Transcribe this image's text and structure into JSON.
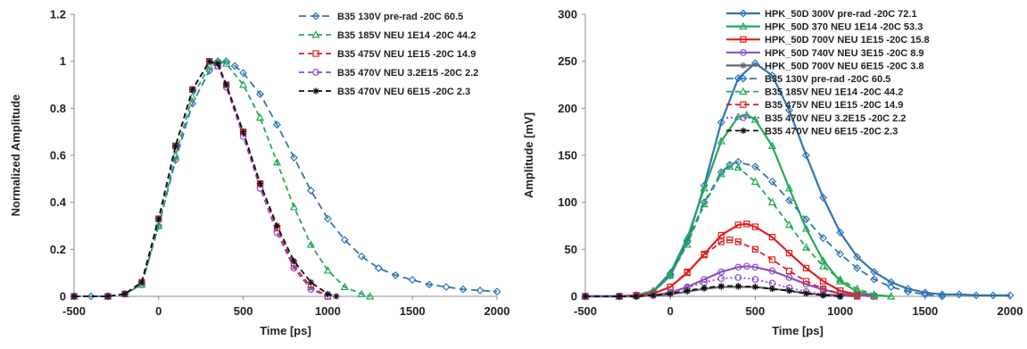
{
  "chart_data": [
    {
      "type": "line",
      "xlabel": "Time [ps]",
      "ylabel": "Normalized Amplitude",
      "xlim": [
        -500,
        2000
      ],
      "ylim": [
        0,
        1.2
      ],
      "xticks": [
        "-500",
        "0",
        "500",
        "1000",
        "1500",
        "2000"
      ],
      "yticks": [
        "0",
        "0.2",
        "0.4",
        "0.6",
        "0.8",
        "1",
        "1.2"
      ],
      "grid": false,
      "legend_position": "top-right",
      "series": [
        {
          "name": "B35 130V pre-rad -20C 60.5",
          "color": "#2e75b6",
          "dash": "8,5",
          "marker": "diamond",
          "x": [
            -500,
            -400,
            -300,
            -200,
            -100,
            0,
            100,
            200,
            300,
            350,
            400,
            450,
            500,
            600,
            700,
            800,
            900,
            1000,
            1100,
            1200,
            1300,
            1400,
            1500,
            1600,
            1700,
            1800,
            1900,
            2000
          ],
          "y": [
            0,
            0,
            0,
            0.01,
            0.05,
            0.3,
            0.58,
            0.82,
            0.96,
            1.0,
            1.0,
            0.98,
            0.95,
            0.86,
            0.73,
            0.59,
            0.45,
            0.33,
            0.24,
            0.17,
            0.12,
            0.09,
            0.07,
            0.05,
            0.04,
            0.03,
            0.025,
            0.02
          ]
        },
        {
          "name": "B35 185V NEU 1E14 -20C 44.2",
          "color": "#22aa55",
          "dash": "6,4",
          "marker": "triangle",
          "x": [
            -500,
            -300,
            -200,
            -100,
            0,
            100,
            200,
            300,
            350,
            400,
            500,
            600,
            700,
            800,
            900,
            1000,
            1100,
            1200,
            1250
          ],
          "y": [
            0,
            0,
            0.01,
            0.05,
            0.3,
            0.6,
            0.85,
            0.98,
            1.0,
            0.99,
            0.9,
            0.76,
            0.57,
            0.38,
            0.22,
            0.11,
            0.04,
            0.01,
            0
          ]
        },
        {
          "name": "B35 475V NEU 1E15 -20C 14.9",
          "color": "#e02020",
          "dash": "6,4",
          "marker": "square",
          "x": [
            -500,
            -300,
            -200,
            -100,
            0,
            100,
            200,
            300,
            350,
            400,
            500,
            600,
            700,
            800,
            900,
            1000
          ],
          "y": [
            0,
            0,
            0.01,
            0.06,
            0.33,
            0.64,
            0.88,
            1.0,
            0.98,
            0.9,
            0.7,
            0.48,
            0.29,
            0.13,
            0.04,
            0
          ]
        },
        {
          "name": "B35 470V NEU 3.2E15 -20C 2.2",
          "color": "#8a4fc4",
          "dash": "6,4",
          "marker": "circle",
          "x": [
            -500,
            -300,
            -200,
            -100,
            0,
            100,
            200,
            300,
            350,
            400,
            500,
            600,
            700,
            800,
            900,
            1000
          ],
          "y": [
            0,
            0,
            0.01,
            0.06,
            0.33,
            0.64,
            0.88,
            1.0,
            0.98,
            0.89,
            0.68,
            0.46,
            0.27,
            0.12,
            0.03,
            0
          ]
        },
        {
          "name": "B35 470V NEU 6E15 -20C 2.3",
          "color": "#111111",
          "dash": "6,4",
          "marker": "star",
          "x": [
            -500,
            -300,
            -200,
            -100,
            0,
            100,
            200,
            300,
            350,
            400,
            500,
            600,
            700,
            800,
            900,
            1000,
            1050
          ],
          "y": [
            0,
            0,
            0.01,
            0.06,
            0.33,
            0.64,
            0.88,
            1.0,
            0.99,
            0.9,
            0.7,
            0.48,
            0.3,
            0.15,
            0.06,
            0.01,
            0
          ]
        }
      ]
    },
    {
      "type": "line",
      "xlabel": "Time [ps]",
      "ylabel": "Amplitude [mV]",
      "xlim": [
        -500,
        2000
      ],
      "ylim": [
        0,
        300
      ],
      "xticks": [
        "-500",
        "0",
        "500",
        "1000",
        "1500",
        "2000"
      ],
      "yticks": [
        "0",
        "50",
        "100",
        "150",
        "200",
        "250",
        "300"
      ],
      "grid": false,
      "legend_position": "top-right",
      "series": [
        {
          "name": "HPK_50D 300V pre-rad -20C 72.1",
          "color": "#2e75b6",
          "dash": "",
          "marker": "diamond",
          "x": [
            -500,
            -300,
            -200,
            -100,
            0,
            100,
            200,
            300,
            400,
            500,
            600,
            700,
            800,
            900,
            1000,
            1100,
            1200,
            1300,
            1400,
            1500,
            1600,
            1700,
            1800,
            1900,
            2000
          ],
          "y": [
            0,
            0,
            1,
            5,
            22,
            58,
            118,
            185,
            232,
            248,
            235,
            198,
            150,
            105,
            68,
            42,
            26,
            15,
            8,
            4,
            2,
            2,
            1,
            1,
            1
          ]
        },
        {
          "name": "HPK_50D 370 NEU 1E14 -20C 53.3",
          "color": "#22aa55",
          "dash": "",
          "marker": "triangle",
          "x": [
            -500,
            -300,
            -200,
            -100,
            0,
            100,
            200,
            300,
            400,
            450,
            500,
            600,
            700,
            800,
            900,
            1000,
            1100,
            1200,
            1300
          ],
          "y": [
            0,
            0,
            1,
            6,
            25,
            62,
            115,
            165,
            191,
            193,
            188,
            160,
            115,
            72,
            38,
            16,
            5,
            1,
            0
          ]
        },
        {
          "name": "HPK_50D 700V NEU 1E15 -20C 15.8",
          "color": "#e02020",
          "dash": "",
          "marker": "square",
          "x": [
            -500,
            -300,
            -200,
            -100,
            0,
            100,
            200,
            300,
            400,
            450,
            500,
            600,
            700,
            800,
            900,
            1000,
            1100,
            1200
          ],
          "y": [
            0,
            0,
            1,
            3,
            10,
            25,
            45,
            65,
            76,
            77,
            74,
            63,
            46,
            30,
            16,
            6,
            2,
            0
          ]
        },
        {
          "name": "HPK_50D 740V NEU 3E15 -20C 8.9",
          "color": "#8a4fc4",
          "dash": "",
          "marker": "circle",
          "x": [
            -500,
            -300,
            -200,
            -100,
            0,
            100,
            200,
            300,
            400,
            450,
            500,
            600,
            700,
            800,
            900,
            1000,
            1100,
            1200
          ],
          "y": [
            0,
            0,
            0,
            1,
            4,
            10,
            18,
            26,
            31,
            32,
            31,
            27,
            20,
            13,
            7,
            3,
            1,
            0
          ]
        },
        {
          "name": "HPK_50D 700V NEU 6E15 -20C 3.8",
          "color": "#666666",
          "dash": "",
          "marker": "star",
          "x": [
            -500,
            -300,
            -200,
            -100,
            0,
            100,
            200,
            300,
            400,
            500,
            600,
            700,
            800,
            900,
            1000,
            1100
          ],
          "y": [
            0,
            0,
            0,
            1,
            2,
            5,
            8,
            10,
            10,
            10,
            8,
            6,
            3,
            2,
            1,
            0
          ]
        },
        {
          "name": "B35 130V pre-rad -20C 60.5",
          "color": "#2e75b6",
          "dash": "8,5",
          "marker": "diamond",
          "x": [
            -500,
            -300,
            -200,
            -100,
            0,
            100,
            200,
            300,
            350,
            400,
            500,
            600,
            700,
            800,
            900,
            1000,
            1100,
            1200,
            1300,
            1400,
            1500,
            1600
          ],
          "y": [
            0,
            0,
            1,
            5,
            24,
            58,
            100,
            132,
            140,
            143,
            138,
            122,
            102,
            82,
            62,
            45,
            30,
            18,
            10,
            5,
            2,
            0
          ]
        },
        {
          "name": "B35 185V NEU 1E14 -20C 44.2",
          "color": "#22aa55",
          "dash": "6,4",
          "marker": "triangle",
          "x": [
            -500,
            -300,
            -200,
            -100,
            0,
            100,
            200,
            300,
            350,
            400,
            500,
            600,
            700,
            800,
            900,
            1000,
            1100,
            1200,
            1300
          ],
          "y": [
            0,
            0,
            1,
            5,
            22,
            55,
            98,
            130,
            138,
            137,
            122,
            100,
            76,
            52,
            32,
            18,
            8,
            2,
            0
          ]
        },
        {
          "name": "B35 475V NEU 1E15 -20C 14.9",
          "color": "#e02020",
          "dash": "6,4",
          "marker": "square",
          "x": [
            -500,
            -300,
            -200,
            -100,
            0,
            100,
            200,
            300,
            350,
            400,
            500,
            600,
            700,
            800,
            900,
            1000,
            1100
          ],
          "y": [
            0,
            0,
            1,
            3,
            10,
            26,
            44,
            58,
            60,
            58,
            50,
            39,
            27,
            16,
            8,
            3,
            0
          ]
        },
        {
          "name": "B35 470V NEU 3.2E15 -20C 2.2",
          "color": "#8a4fc4",
          "dash": "2,3",
          "marker": "circle",
          "x": [
            -500,
            -300,
            -200,
            -100,
            0,
            100,
            200,
            300,
            400,
            500,
            600,
            700,
            800,
            900,
            1000
          ],
          "y": [
            0,
            0,
            0,
            1,
            4,
            9,
            15,
            19,
            20,
            18,
            14,
            9,
            5,
            2,
            0
          ]
        },
        {
          "name": "B35 470V NEU 6E15 -20C 2.3",
          "color": "#111111",
          "dash": "6,4",
          "marker": "star",
          "x": [
            -500,
            -300,
            -200,
            -100,
            0,
            100,
            200,
            300,
            400,
            500,
            600,
            700,
            800,
            900,
            1000
          ],
          "y": [
            0,
            0,
            0,
            1,
            3,
            6,
            9,
            11,
            11,
            10,
            8,
            6,
            3,
            1,
            0
          ]
        }
      ]
    }
  ]
}
